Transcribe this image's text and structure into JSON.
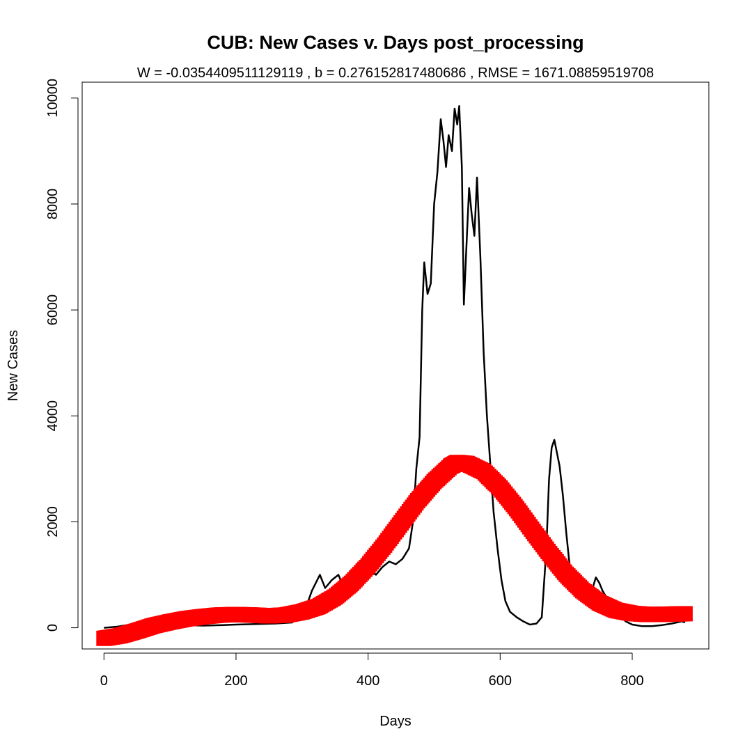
{
  "chart_data": {
    "type": "line",
    "title": "CUB: New Cases v. Days post_processing",
    "subtitle": "W = -0.0354409511129119 , b = 0.276152817480686 , RMSE = 1671.08859519708",
    "xlabel": "Days",
    "ylabel": "New Cases",
    "xlim": [
      -33,
      916
    ],
    "ylim": [
      -400,
      10300
    ],
    "x_ticks": [
      0,
      200,
      400,
      600,
      800
    ],
    "y_ticks": [
      0,
      2000,
      4000,
      6000,
      8000,
      10000
    ],
    "grid": false,
    "legend": "none",
    "series": [
      {
        "style": "black-line",
        "color": "#000000",
        "points": [
          [
            0,
            0
          ],
          [
            20,
            20
          ],
          [
            40,
            60
          ],
          [
            60,
            20
          ],
          [
            80,
            10
          ],
          [
            100,
            30
          ],
          [
            120,
            50
          ],
          [
            150,
            40
          ],
          [
            180,
            50
          ],
          [
            200,
            60
          ],
          [
            230,
            70
          ],
          [
            260,
            80
          ],
          [
            285,
            100
          ],
          [
            295,
            200
          ],
          [
            305,
            350
          ],
          [
            315,
            700
          ],
          [
            327,
            1000
          ],
          [
            335,
            750
          ],
          [
            345,
            900
          ],
          [
            355,
            1000
          ],
          [
            362,
            800
          ],
          [
            372,
            950
          ],
          [
            382,
            750
          ],
          [
            392,
            1000
          ],
          [
            402,
            1100
          ],
          [
            412,
            1000
          ],
          [
            422,
            1150
          ],
          [
            432,
            1250
          ],
          [
            442,
            1200
          ],
          [
            452,
            1300
          ],
          [
            462,
            1500
          ],
          [
            468,
            2000
          ],
          [
            473,
            3000
          ],
          [
            478,
            3600
          ],
          [
            482,
            6000
          ],
          [
            485,
            6900
          ],
          [
            490,
            6300
          ],
          [
            495,
            6500
          ],
          [
            500,
            8000
          ],
          [
            505,
            8600
          ],
          [
            510,
            9600
          ],
          [
            514,
            9200
          ],
          [
            518,
            8700
          ],
          [
            522,
            9300
          ],
          [
            527,
            9000
          ],
          [
            531,
            9800
          ],
          [
            535,
            9500
          ],
          [
            538,
            9850
          ],
          [
            542,
            8700
          ],
          [
            545,
            6100
          ],
          [
            550,
            7500
          ],
          [
            553,
            8300
          ],
          [
            557,
            7800
          ],
          [
            561,
            7400
          ],
          [
            565,
            8500
          ],
          [
            570,
            7000
          ],
          [
            575,
            5200
          ],
          [
            580,
            4000
          ],
          [
            585,
            3100
          ],
          [
            590,
            2200
          ],
          [
            596,
            1500
          ],
          [
            602,
            900
          ],
          [
            608,
            500
          ],
          [
            615,
            300
          ],
          [
            625,
            200
          ],
          [
            635,
            120
          ],
          [
            645,
            60
          ],
          [
            655,
            80
          ],
          [
            663,
            200
          ],
          [
            670,
            1500
          ],
          [
            674,
            2800
          ],
          [
            678,
            3400
          ],
          [
            682,
            3550
          ],
          [
            686,
            3300
          ],
          [
            690,
            3050
          ],
          [
            695,
            2500
          ],
          [
            700,
            1800
          ],
          [
            705,
            1200
          ],
          [
            712,
            900
          ],
          [
            720,
            700
          ],
          [
            730,
            600
          ],
          [
            740,
            750
          ],
          [
            745,
            950
          ],
          [
            750,
            850
          ],
          [
            755,
            700
          ],
          [
            762,
            550
          ],
          [
            770,
            400
          ],
          [
            780,
            250
          ],
          [
            790,
            120
          ],
          [
            800,
            60
          ],
          [
            815,
            30
          ],
          [
            830,
            30
          ],
          [
            845,
            50
          ],
          [
            860,
            80
          ],
          [
            875,
            120
          ],
          [
            880,
            100
          ]
        ]
      },
      {
        "style": "red-band",
        "color": "#ff0000",
        "points": [
          [
            0,
            -200
          ],
          [
            25,
            -150
          ],
          [
            50,
            -60
          ],
          [
            75,
            40
          ],
          [
            100,
            110
          ],
          [
            125,
            170
          ],
          [
            150,
            210
          ],
          [
            175,
            240
          ],
          [
            200,
            250
          ],
          [
            225,
            240
          ],
          [
            250,
            225
          ],
          [
            275,
            240
          ],
          [
            300,
            300
          ],
          [
            325,
            400
          ],
          [
            350,
            580
          ],
          [
            375,
            840
          ],
          [
            400,
            1170
          ],
          [
            425,
            1560
          ],
          [
            450,
            1980
          ],
          [
            475,
            2400
          ],
          [
            500,
            2760
          ],
          [
            525,
            3050
          ],
          [
            535,
            3120
          ],
          [
            550,
            3100
          ],
          [
            575,
            2950
          ],
          [
            600,
            2640
          ],
          [
            625,
            2250
          ],
          [
            650,
            1820
          ],
          [
            675,
            1400
          ],
          [
            700,
            1010
          ],
          [
            725,
            700
          ],
          [
            750,
            470
          ],
          [
            775,
            330
          ],
          [
            800,
            270
          ],
          [
            825,
            250
          ],
          [
            850,
            255
          ],
          [
            880,
            265
          ]
        ]
      }
    ]
  }
}
